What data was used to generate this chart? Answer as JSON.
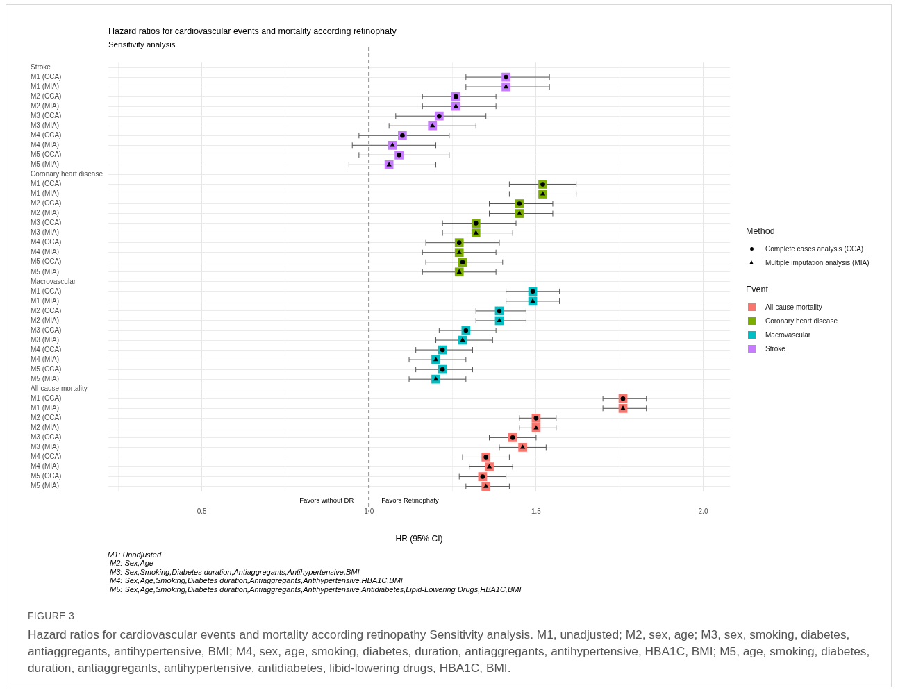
{
  "chart_data": {
    "type": "scatter",
    "orientation": "horizontal",
    "title": "Hazard ratios for cardiovascular events and mortality according retinophaty",
    "subtitle": "Sensitivity analysis",
    "xlabel": "HR (95% CI)",
    "legend_title": "Event",
    "legend": "right",
    "grid": true,
    "categories": [
      "Stroke",
      "M1 (CCA)",
      "M1 (MIA)",
      "M2 (CCA)",
      "M2 (MIA)",
      "M3 (CCA)",
      "M3 (MIA)",
      "M4 (CCA)",
      "M4 (MIA)",
      "M5 (CCA)",
      "M5 (MIA)",
      "Coronary heart disease",
      "M1 (CCA)",
      "M1 (MIA)",
      "M2 (CCA)",
      "M2 (MIA)",
      "M3 (CCA)",
      "M3 (MIA)",
      "M4 (CCA)",
      "M4 (MIA)",
      "M5 (CCA)",
      "M5 (MIA)",
      "Macrovascular",
      "M1 (CCA)",
      "M1 (MIA)",
      "M2 (CCA)",
      "M2 (MIA)",
      "M3 (CCA)",
      "M3 (MIA)",
      "M4 (CCA)",
      "M4 (MIA)",
      "M5 (CCA)",
      "M5 (MIA)",
      "All-cause mortality",
      "M1 (CCA)",
      "M1 (MIA)",
      "M2 (CCA)",
      "M2 (MIA)",
      "M3 (CCA)",
      "M3 (MIA)",
      "M4 (CCA)",
      "M4 (MIA)",
      "M5 (CCA)",
      "M5 (MIA)"
    ],
    "xlim": [
      0.22,
      2.08
    ],
    "xticks": [
      {
        "value": 0.25,
        "label": null
      },
      0.5,
      {
        "value": 0.75,
        "label": null
      },
      {
        "value": 1,
        "label": "1.0"
      },
      {
        "value": 1.25,
        "label": null
      },
      1.5,
      {
        "value": 1.75,
        "label": null
      },
      {
        "value": 2,
        "label": "2.0"
      }
    ],
    "ref_lines": [
      {
        "axis": "x",
        "value": 1,
        "color": "#333333",
        "line_style": "dashed"
      }
    ],
    "series": [
      {
        "name": "All-cause mortality",
        "color": "#f8766d",
        "marker": "square",
        "values": [
          null,
          null,
          null,
          null,
          null,
          null,
          null,
          null,
          null,
          null,
          null,
          null,
          null,
          null,
          null,
          null,
          null,
          null,
          null,
          null,
          null,
          null,
          null,
          null,
          null,
          null,
          null,
          null,
          null,
          null,
          null,
          null,
          null,
          null,
          1.76,
          1.76,
          1.5,
          1.5,
          1.43,
          1.46,
          1.35,
          1.36,
          1.34,
          1.35
        ],
        "errors": [
          null,
          null,
          null,
          null,
          null,
          null,
          null,
          null,
          null,
          null,
          null,
          null,
          null,
          null,
          null,
          null,
          null,
          null,
          null,
          null,
          null,
          null,
          null,
          null,
          null,
          null,
          null,
          null,
          null,
          null,
          null,
          null,
          null,
          null,
          [
            1.7,
            1.83
          ],
          [
            1.7,
            1.83
          ],
          [
            1.45,
            1.56
          ],
          [
            1.45,
            1.56
          ],
          [
            1.36,
            1.5
          ],
          [
            1.39,
            1.53
          ],
          [
            1.28,
            1.42
          ],
          [
            1.3,
            1.43
          ],
          [
            1.27,
            1.41
          ],
          [
            1.29,
            1.42
          ]
        ]
      },
      {
        "name": "Coronary heart disease",
        "color": "#7cae00",
        "marker": "square",
        "values": [
          null,
          null,
          null,
          null,
          null,
          null,
          null,
          null,
          null,
          null,
          null,
          null,
          1.52,
          1.52,
          1.45,
          1.45,
          1.32,
          1.32,
          1.27,
          1.27,
          1.28,
          1.27,
          null,
          null,
          null,
          null,
          null,
          null,
          null,
          null,
          null,
          null,
          null,
          null,
          null,
          null,
          null,
          null,
          null,
          null,
          null,
          null,
          null,
          null
        ],
        "errors": [
          null,
          null,
          null,
          null,
          null,
          null,
          null,
          null,
          null,
          null,
          null,
          null,
          [
            1.42,
            1.62
          ],
          [
            1.42,
            1.62
          ],
          [
            1.36,
            1.55
          ],
          [
            1.36,
            1.55
          ],
          [
            1.22,
            1.44
          ],
          [
            1.22,
            1.43
          ],
          [
            1.17,
            1.39
          ],
          [
            1.16,
            1.38
          ],
          [
            1.17,
            1.4
          ],
          [
            1.16,
            1.38
          ],
          null,
          null,
          null,
          null,
          null,
          null,
          null,
          null,
          null,
          null,
          null,
          null,
          null,
          null,
          null,
          null,
          null,
          null,
          null,
          null,
          null,
          null
        ]
      },
      {
        "name": "Macrovascular",
        "color": "#00bfc4",
        "marker": "square",
        "values": [
          null,
          null,
          null,
          null,
          null,
          null,
          null,
          null,
          null,
          null,
          null,
          null,
          null,
          null,
          null,
          null,
          null,
          null,
          null,
          null,
          null,
          null,
          null,
          1.49,
          1.49,
          1.39,
          1.39,
          1.29,
          1.28,
          1.22,
          1.2,
          1.22,
          1.2,
          null,
          null,
          null,
          null,
          null,
          null,
          null,
          null,
          null,
          null,
          null
        ],
        "errors": [
          null,
          null,
          null,
          null,
          null,
          null,
          null,
          null,
          null,
          null,
          null,
          null,
          null,
          null,
          null,
          null,
          null,
          null,
          null,
          null,
          null,
          null,
          null,
          [
            1.41,
            1.57
          ],
          [
            1.41,
            1.57
          ],
          [
            1.32,
            1.47
          ],
          [
            1.32,
            1.47
          ],
          [
            1.21,
            1.38
          ],
          [
            1.2,
            1.37
          ],
          [
            1.14,
            1.31
          ],
          [
            1.12,
            1.29
          ],
          [
            1.14,
            1.31
          ],
          [
            1.12,
            1.29
          ],
          null,
          null,
          null,
          null,
          null,
          null,
          null,
          null,
          null,
          null,
          null
        ]
      },
      {
        "name": "Stroke",
        "color": "#c77cff",
        "marker": "square",
        "values": [
          null,
          1.41,
          1.41,
          1.26,
          1.26,
          1.21,
          1.19,
          1.1,
          1.07,
          1.09,
          1.06,
          null,
          null,
          null,
          null,
          null,
          null,
          null,
          null,
          null,
          null,
          null,
          null,
          null,
          null,
          null,
          null,
          null,
          null,
          null,
          null,
          null,
          null,
          null,
          null,
          null,
          null,
          null,
          null,
          null,
          null,
          null,
          null,
          null
        ],
        "errors": [
          null,
          [
            1.29,
            1.54
          ],
          [
            1.29,
            1.54
          ],
          [
            1.16,
            1.38
          ],
          [
            1.16,
            1.38
          ],
          [
            1.08,
            1.35
          ],
          [
            1.06,
            1.32
          ],
          [
            0.97,
            1.24
          ],
          [
            0.95,
            1.2
          ],
          [
            0.97,
            1.24
          ],
          [
            0.94,
            1.2
          ],
          null,
          null,
          null,
          null,
          null,
          null,
          null,
          null,
          null,
          null,
          null,
          null,
          null,
          null,
          null,
          null,
          null,
          null,
          null,
          null,
          null,
          null,
          null,
          null,
          null,
          null,
          null,
          null,
          null,
          null,
          null,
          null,
          null
        ]
      },
      {
        "name": "Complete cases analysis (CCA)",
        "color": "#000000",
        "marker": "circle",
        "values": [
          null,
          1.41,
          null,
          1.26,
          null,
          1.21,
          null,
          1.1,
          null,
          1.09,
          null,
          null,
          1.52,
          null,
          1.45,
          null,
          1.32,
          null,
          1.27,
          null,
          1.28,
          null,
          null,
          1.49,
          null,
          1.39,
          null,
          1.29,
          null,
          1.22,
          null,
          1.22,
          null,
          null,
          1.76,
          null,
          1.5,
          null,
          1.43,
          null,
          1.35,
          null,
          1.34,
          null
        ]
      },
      {
        "name": "Multiple imputation analysis (MIA)",
        "color": "#000000",
        "marker": "triangle",
        "values": [
          null,
          null,
          1.41,
          null,
          1.26,
          null,
          1.19,
          null,
          1.07,
          null,
          1.06,
          null,
          null,
          1.52,
          null,
          1.45,
          null,
          1.32,
          null,
          1.27,
          null,
          1.27,
          null,
          null,
          1.49,
          null,
          1.39,
          null,
          1.28,
          null,
          1.2,
          null,
          1.2,
          null,
          null,
          1.76,
          null,
          1.5,
          null,
          1.46,
          null,
          1.36,
          null,
          1.35
        ]
      }
    ],
    "annotations": [
      "Method",
      "Favors without DR",
      "Favors Retinophaty",
      "M1: Unadjusted",
      "M2: Sex,Age",
      "M3: Sex,Smoking,Diabetes duration,Antiaggregants,Antihypertensive,BMI",
      "M4: Sex,Age,Smoking,Diabetes duration,Antiaggregants,Antihypertensive,HBA1C,BMI",
      "M5: Sex,Age,Smoking,Diabetes duration,Antiaggregants,Antihypertensive,Antidiabetes,Lipid-Lowering Drugs,HBA1C,BMI",
      "FIGURE 3",
      "Hazard ratios for cardiovascular events and mortality according retinopathy Sensitivity analysis. M1, unadjusted; M2, sex, age; M3, sex, smoking, diabetes, antiaggregants, antihypertensive, BMI; M4, sex, age, smoking, diabetes, duration, antiaggregants, antihypertensive, HBA1C, BMI; M5, age, smoking, diabetes, duration, antiaggregants, antihypertensive, antidiabetes, libid-lowering drugs, HBA1C, BMI."
    ]
  }
}
